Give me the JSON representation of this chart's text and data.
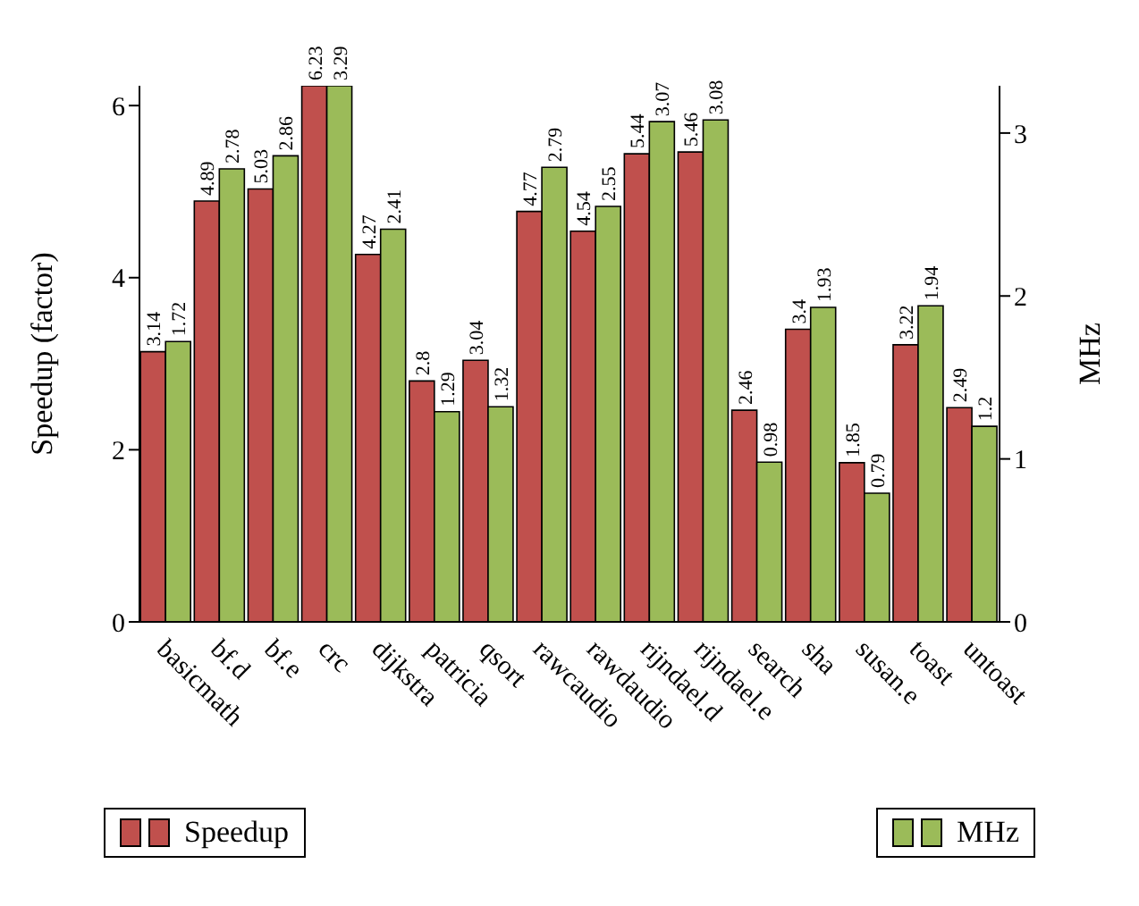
{
  "chart_data": {
    "type": "bar",
    "ylabel": "Speedup (factor)",
    "y2label": "MHz",
    "categories": [
      "basicmath",
      "bf.d",
      "bf.e",
      "crc",
      "dijkstra",
      "patricia",
      "qsort",
      "rawcaudio",
      "rawdaudio",
      "rijndael.d",
      "rijndael.e",
      "search",
      "sha",
      "susan.e",
      "toast",
      "untoast"
    ],
    "series": [
      {
        "name": "Speedup",
        "color": "#c0504d",
        "values": [
          3.14,
          4.89,
          5.03,
          6.23,
          4.27,
          2.8,
          3.04,
          4.77,
          4.54,
          5.44,
          5.46,
          2.46,
          3.4,
          1.85,
          3.22,
          2.49
        ]
      },
      {
        "name": "MHz",
        "color": "#9bbb59",
        "axis": "y2",
        "values": [
          1.72,
          2.78,
          2.86,
          3.29,
          2.41,
          1.29,
          1.32,
          2.79,
          2.55,
          3.07,
          3.08,
          0.98,
          1.93,
          0.79,
          1.94,
          1.2
        ]
      }
    ],
    "ylim": [
      0,
      6.23
    ],
    "yticks": [
      0,
      2,
      4,
      6
    ],
    "y2lim": [
      0,
      3.29
    ],
    "y2ticks": [
      0,
      1,
      2,
      3
    ],
    "data_labels": true,
    "grid": false,
    "legend": "bottom"
  }
}
